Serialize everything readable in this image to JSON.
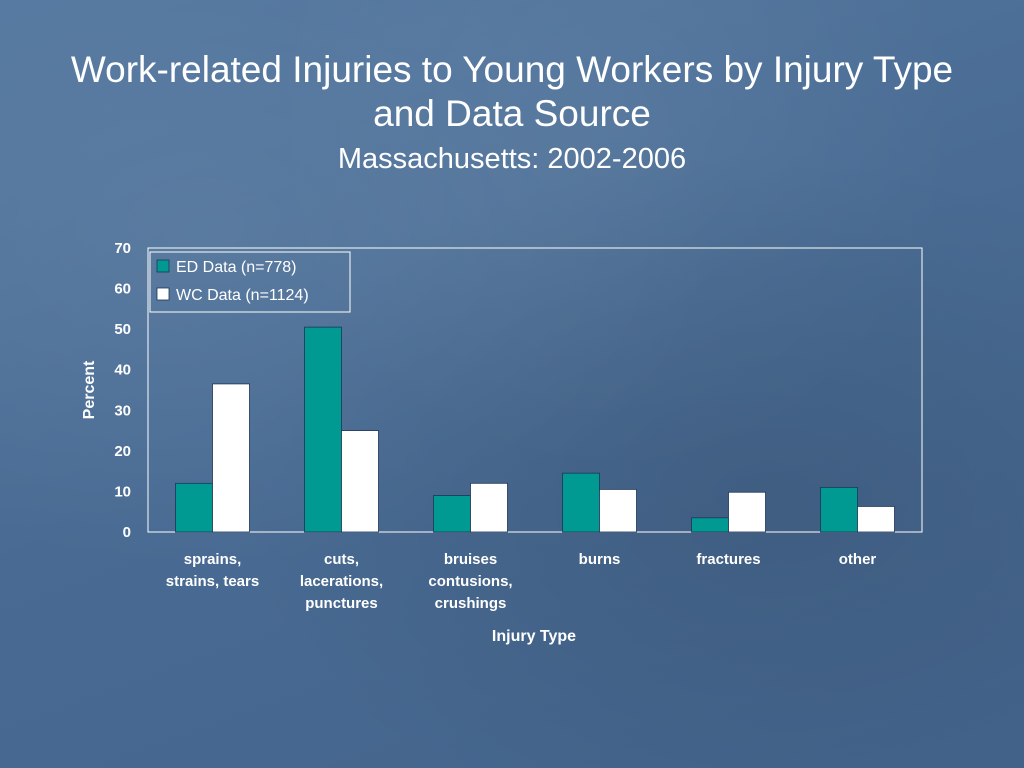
{
  "slide": {
    "title": "Work-related Injuries to Young Workers by Injury Type and Data Source",
    "subtitle": "Massachusetts: 2002-2006"
  },
  "chart_data": {
    "type": "bar",
    "categories": [
      [
        "sprains,",
        "strains, tears"
      ],
      [
        "cuts,",
        "lacerations,",
        "punctures"
      ],
      [
        "bruises",
        "contusions,",
        "crushings"
      ],
      [
        "burns"
      ],
      [
        "fractures"
      ],
      [
        "other"
      ]
    ],
    "series": [
      {
        "name": "ED Data (n=778)",
        "color": "#009a93",
        "values": [
          12,
          50.5,
          9,
          14.5,
          3.5,
          11
        ]
      },
      {
        "name": "WC Data (n=1124)",
        "color": "#ffffff",
        "values": [
          36.5,
          25,
          12,
          10.5,
          9.8,
          6.3
        ]
      }
    ],
    "xlabel": "Injury Type",
    "ylabel": "Percent",
    "ylim": [
      0,
      70
    ],
    "yticks": [
      "0",
      "10",
      "20",
      "30",
      "40",
      "50",
      "60",
      "70"
    ],
    "grid": false,
    "legend": "top-left"
  }
}
